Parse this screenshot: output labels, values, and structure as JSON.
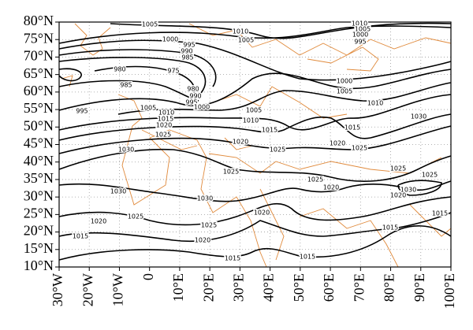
{
  "map": {
    "xlim": [
      -30,
      100
    ],
    "ylim": [
      10,
      80
    ],
    "xticks": [
      {
        "value": -30,
        "label": "30°W"
      },
      {
        "value": -20,
        "label": "20°W"
      },
      {
        "value": -10,
        "label": "10°W"
      },
      0,
      {
        "value": 10,
        "label": "10°E"
      },
      {
        "value": 20,
        "label": "20°E"
      },
      {
        "value": 30,
        "label": "30°E"
      },
      {
        "value": 40,
        "label": "40°E"
      },
      {
        "value": 50,
        "label": "50°E"
      },
      {
        "value": 60,
        "label": "60°E"
      },
      {
        "value": 70,
        "label": "70°E"
      },
      {
        "value": 80,
        "label": "80°E"
      },
      {
        "value": 90,
        "label": "90°E"
      },
      {
        "value": 100,
        "label": "100°E"
      }
    ],
    "yticks": [
      {
        "value": 10,
        "label": "10°N"
      },
      {
        "value": 15,
        "label": "15°N"
      },
      {
        "value": 20,
        "label": "20°N"
      },
      {
        "value": 25,
        "label": "25°N"
      },
      {
        "value": 30,
        "label": "30°N"
      },
      {
        "value": 35,
        "label": "35°N"
      },
      {
        "value": 40,
        "label": "40°N"
      },
      {
        "value": 45,
        "label": "45°N"
      },
      {
        "value": 50,
        "label": "50°N"
      },
      {
        "value": 55,
        "label": "55°N"
      },
      {
        "value": 60,
        "label": "60°N"
      },
      {
        "value": 65,
        "label": "65°N"
      },
      {
        "value": 70,
        "label": "70°N"
      },
      {
        "value": 75,
        "label": "75°N"
      },
      {
        "value": 80,
        "label": "80°N"
      }
    ],
    "isobar_labels": [
      "1005",
      "1010",
      "1005",
      "1000",
      "995",
      "990",
      "985",
      "980",
      "975",
      "985",
      "980",
      "990",
      "995",
      "1000",
      "995",
      "1005",
      "1010",
      "1015",
      "1020",
      "1025",
      "1030",
      "1005",
      "1010",
      "1015",
      "1020",
      "1025",
      "1020",
      "1025",
      "1015",
      "1010",
      "1000",
      "1005",
      "1010",
      "1005",
      "1000",
      "995",
      "1030",
      "1025",
      "1025",
      "1020",
      "1025",
      "1030",
      "1030",
      "1025",
      "1030",
      "1020",
      "1025",
      "1025",
      "1020",
      "1020",
      "1015",
      "1015",
      "1015",
      "1020",
      "1015",
      "1015"
    ]
  }
}
